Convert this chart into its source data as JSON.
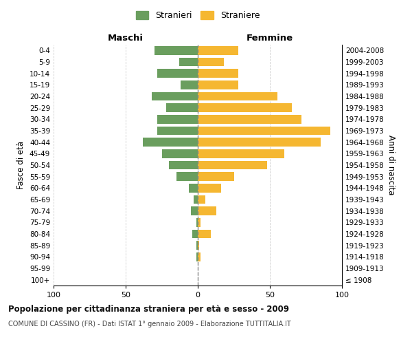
{
  "age_groups": [
    "100+",
    "95-99",
    "90-94",
    "85-89",
    "80-84",
    "75-79",
    "70-74",
    "65-69",
    "60-64",
    "55-59",
    "50-54",
    "45-49",
    "40-44",
    "35-39",
    "30-34",
    "25-29",
    "20-24",
    "15-19",
    "10-14",
    "5-9",
    "0-4"
  ],
  "birth_years": [
    "≤ 1908",
    "1909-1913",
    "1914-1918",
    "1919-1923",
    "1924-1928",
    "1929-1933",
    "1934-1938",
    "1939-1943",
    "1944-1948",
    "1949-1953",
    "1954-1958",
    "1959-1963",
    "1964-1968",
    "1969-1973",
    "1974-1978",
    "1979-1983",
    "1984-1988",
    "1989-1993",
    "1994-1998",
    "1999-2003",
    "2004-2008"
  ],
  "maschi": [
    0,
    0,
    1,
    1,
    4,
    1,
    5,
    3,
    6,
    15,
    20,
    25,
    38,
    28,
    28,
    22,
    32,
    12,
    28,
    13,
    30
  ],
  "femmine": [
    0,
    0,
    2,
    1,
    9,
    2,
    13,
    5,
    16,
    25,
    48,
    60,
    85,
    92,
    72,
    65,
    55,
    28,
    28,
    18,
    28
  ],
  "maschi_color": "#6a9e5e",
  "femmine_color": "#f5b731",
  "background_color": "#ffffff",
  "grid_color": "#cccccc",
  "center_line_color": "#888888",
  "title": "Popolazione per cittadinanza straniera per età e sesso - 2009",
  "subtitle": "COMUNE DI CASSINO (FR) - Dati ISTAT 1° gennaio 2009 - Elaborazione TUTTITALIA.IT",
  "ylabel_left": "Fasce di età",
  "ylabel_right": "Anni di nascita",
  "xlabel_left": "Maschi",
  "xlabel_right": "Femmine",
  "legend_maschi": "Stranieri",
  "legend_femmine": "Straniere",
  "xlim": 100
}
